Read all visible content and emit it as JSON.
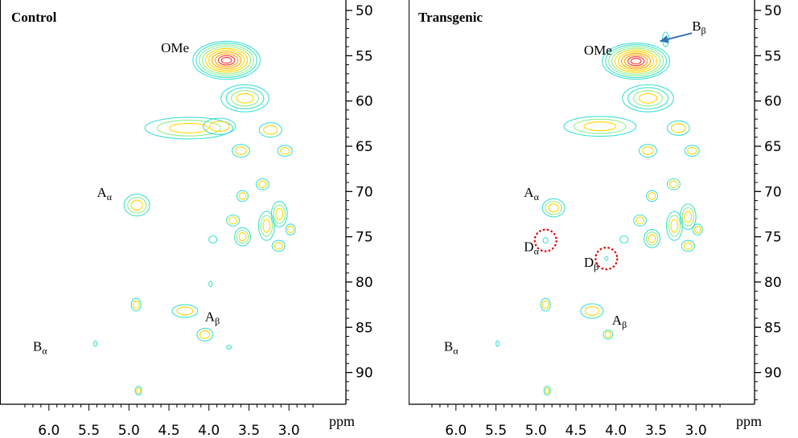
{
  "chart_data": [
    {
      "type": "contour",
      "title": "Control",
      "xlabel": "ppm",
      "xlim": [
        6.4,
        2.6
      ],
      "ylim": [
        50,
        93.5
      ],
      "x_ticks": [
        "6.0",
        "5.5",
        "5.0",
        "4.5",
        "4.0",
        "3.5",
        "3.0"
      ],
      "y_ticks": [
        "50",
        "55",
        "60",
        "65",
        "70",
        "75",
        "80",
        "85",
        "90"
      ],
      "contour_colors": [
        "#40e0d0",
        "#90ee90",
        "#ffd700",
        "#ffa500",
        "#ff3030"
      ],
      "peaks": [
        {
          "x": 3.78,
          "y": 55.5,
          "rx": 0.42,
          "ry": 2.1,
          "levels": 10
        },
        {
          "x": 3.55,
          "y": 59.7,
          "rx": 0.3,
          "ry": 1.5,
          "levels": 4
        },
        {
          "x": 4.25,
          "y": 63.0,
          "rx": 0.55,
          "ry": 1.2,
          "levels": 3
        },
        {
          "x": 3.87,
          "y": 62.8,
          "rx": 0.2,
          "ry": 0.9,
          "levels": 2
        },
        {
          "x": 3.23,
          "y": 63.2,
          "rx": 0.14,
          "ry": 0.8,
          "levels": 2
        },
        {
          "x": 3.6,
          "y": 65.5,
          "rx": 0.11,
          "ry": 0.7,
          "levels": 2
        },
        {
          "x": 3.05,
          "y": 65.5,
          "rx": 0.09,
          "ry": 0.6,
          "levels": 2
        },
        {
          "x": 4.9,
          "y": 71.5,
          "rx": 0.16,
          "ry": 1.2,
          "levels": 3
        },
        {
          "x": 3.33,
          "y": 69.2,
          "rx": 0.08,
          "ry": 0.6,
          "levels": 2
        },
        {
          "x": 3.58,
          "y": 70.5,
          "rx": 0.07,
          "ry": 0.6,
          "levels": 2
        },
        {
          "x": 3.7,
          "y": 73.2,
          "rx": 0.08,
          "ry": 0.6,
          "levels": 2
        },
        {
          "x": 3.58,
          "y": 75.0,
          "rx": 0.1,
          "ry": 1.0,
          "levels": 3
        },
        {
          "x": 3.28,
          "y": 73.8,
          "rx": 0.1,
          "ry": 1.6,
          "levels": 3
        },
        {
          "x": 3.12,
          "y": 72.5,
          "rx": 0.1,
          "ry": 1.4,
          "levels": 3
        },
        {
          "x": 2.98,
          "y": 74.2,
          "rx": 0.06,
          "ry": 0.6,
          "levels": 2
        },
        {
          "x": 3.95,
          "y": 75.3,
          "rx": 0.05,
          "ry": 0.4,
          "levels": 1
        },
        {
          "x": 3.13,
          "y": 76.0,
          "rx": 0.08,
          "ry": 0.6,
          "levels": 2
        },
        {
          "x": 4.91,
          "y": 82.5,
          "rx": 0.06,
          "ry": 0.7,
          "levels": 2
        },
        {
          "x": 4.3,
          "y": 83.2,
          "rx": 0.16,
          "ry": 0.7,
          "levels": 2
        },
        {
          "x": 4.05,
          "y": 85.8,
          "rx": 0.1,
          "ry": 0.7,
          "levels": 2
        },
        {
          "x": 4.88,
          "y": 92.0,
          "rx": 0.04,
          "ry": 0.5,
          "levels": 2
        },
        {
          "x": 5.42,
          "y": 86.8,
          "rx": 0.02,
          "ry": 0.3,
          "levels": 1
        },
        {
          "x": 3.75,
          "y": 87.2,
          "rx": 0.03,
          "ry": 0.2,
          "levels": 1
        },
        {
          "x": 3.98,
          "y": 80.2,
          "rx": 0.02,
          "ry": 0.3,
          "levels": 1
        }
      ],
      "annotations": [
        {
          "main": "OMe",
          "sub": "",
          "x": 4.6,
          "y": 54.6
        },
        {
          "main": "A",
          "sub": "α",
          "x": 5.4,
          "y": 70.6
        },
        {
          "main": "A",
          "sub": "β",
          "x": 4.05,
          "y": 84.3
        },
        {
          "main": "B",
          "sub": "α",
          "x": 6.2,
          "y": 87.6
        }
      ],
      "markers": []
    },
    {
      "type": "contour",
      "title": "Transgenic",
      "xlabel": "ppm",
      "xlim": [
        6.4,
        2.6
      ],
      "ylim": [
        50,
        93.5
      ],
      "x_ticks": [
        "6.0",
        "5.5",
        "5.0",
        "4.5",
        "4.0",
        "3.5",
        "3.0"
      ],
      "y_ticks": [
        "50",
        "55",
        "60",
        "65",
        "70",
        "75",
        "80",
        "85",
        "90"
      ],
      "contour_colors": [
        "#40e0d0",
        "#90ee90",
        "#ffd700",
        "#ffa500",
        "#ff3030"
      ],
      "peaks": [
        {
          "x": 3.75,
          "y": 55.6,
          "rx": 0.42,
          "ry": 2.0,
          "levels": 10
        },
        {
          "x": 3.6,
          "y": 59.7,
          "rx": 0.32,
          "ry": 1.5,
          "levels": 4
        },
        {
          "x": 4.2,
          "y": 62.8,
          "rx": 0.45,
          "ry": 1.1,
          "levels": 3
        },
        {
          "x": 3.22,
          "y": 63.0,
          "rx": 0.14,
          "ry": 0.8,
          "levels": 2
        },
        {
          "x": 3.6,
          "y": 65.5,
          "rx": 0.11,
          "ry": 0.7,
          "levels": 2
        },
        {
          "x": 3.05,
          "y": 65.5,
          "rx": 0.09,
          "ry": 0.6,
          "levels": 2
        },
        {
          "x": 4.78,
          "y": 71.8,
          "rx": 0.14,
          "ry": 1.0,
          "levels": 3
        },
        {
          "x": 3.28,
          "y": 69.2,
          "rx": 0.08,
          "ry": 0.6,
          "levels": 2
        },
        {
          "x": 3.55,
          "y": 70.5,
          "rx": 0.07,
          "ry": 0.6,
          "levels": 2
        },
        {
          "x": 3.7,
          "y": 73.2,
          "rx": 0.08,
          "ry": 0.6,
          "levels": 2
        },
        {
          "x": 3.55,
          "y": 75.2,
          "rx": 0.1,
          "ry": 1.0,
          "levels": 3
        },
        {
          "x": 3.27,
          "y": 73.8,
          "rx": 0.1,
          "ry": 1.6,
          "levels": 3
        },
        {
          "x": 3.1,
          "y": 72.8,
          "rx": 0.1,
          "ry": 1.4,
          "levels": 3
        },
        {
          "x": 2.98,
          "y": 74.2,
          "rx": 0.06,
          "ry": 0.6,
          "levels": 2
        },
        {
          "x": 3.9,
          "y": 75.3,
          "rx": 0.05,
          "ry": 0.4,
          "levels": 1
        },
        {
          "x": 3.1,
          "y": 76.0,
          "rx": 0.08,
          "ry": 0.6,
          "levels": 2
        },
        {
          "x": 4.88,
          "y": 82.5,
          "rx": 0.06,
          "ry": 0.7,
          "levels": 2
        },
        {
          "x": 4.3,
          "y": 83.2,
          "rx": 0.14,
          "ry": 0.8,
          "levels": 2
        },
        {
          "x": 4.1,
          "y": 85.8,
          "rx": 0.06,
          "ry": 0.5,
          "levels": 2
        },
        {
          "x": 4.86,
          "y": 92.0,
          "rx": 0.04,
          "ry": 0.5,
          "levels": 2
        },
        {
          "x": 5.48,
          "y": 86.8,
          "rx": 0.02,
          "ry": 0.3,
          "levels": 1
        },
        {
          "x": 3.38,
          "y": 53.2,
          "rx": 0.04,
          "ry": 0.8,
          "levels": 1
        },
        {
          "x": 4.88,
          "y": 75.4,
          "rx": 0.03,
          "ry": 0.3,
          "levels": 1
        },
        {
          "x": 4.12,
          "y": 77.4,
          "rx": 0.02,
          "ry": 0.2,
          "levels": 1
        }
      ],
      "annotations": [
        {
          "main": "OMe",
          "sub": "",
          "x": 4.4,
          "y": 54.9
        },
        {
          "main": "B",
          "sub": "β",
          "x": 3.05,
          "y": 52.2
        },
        {
          "main": "A",
          "sub": "α",
          "x": 5.15,
          "y": 70.6
        },
        {
          "main": "D",
          "sub": "α",
          "x": 5.15,
          "y": 76.6
        },
        {
          "main": "D",
          "sub": "β",
          "x": 4.4,
          "y": 78.3
        },
        {
          "main": "A",
          "sub": "β",
          "x": 4.05,
          "y": 84.7
        },
        {
          "main": "B",
          "sub": "α",
          "x": 6.15,
          "y": 87.6
        }
      ],
      "markers": [
        {
          "type": "dashed-circle",
          "x": 4.88,
          "y": 75.4,
          "r": 1.2,
          "color": "#e00000"
        },
        {
          "type": "dashed-circle",
          "x": 4.12,
          "y": 77.4,
          "r": 1.2,
          "color": "#e00000"
        },
        {
          "type": "arrow",
          "from": [
            3.05,
            52.5
          ],
          "to": [
            3.45,
            53.4
          ],
          "color": "#3a6fb0"
        }
      ]
    }
  ]
}
